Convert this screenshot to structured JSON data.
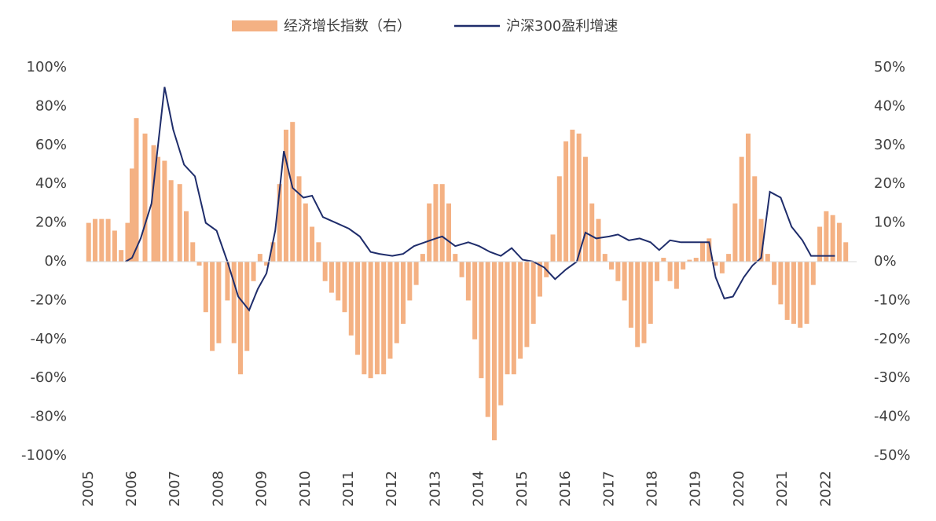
{
  "chart_data": {
    "type": "combo",
    "xlim": [
      2004.95,
      2022.7
    ],
    "xticks": [
      2005,
      2006,
      2007,
      2008,
      2009,
      2010,
      2011,
      2012,
      2013,
      2014,
      2015,
      2016,
      2017,
      2018,
      2019,
      2020,
      2021,
      2022
    ],
    "ylim": [
      -100,
      100
    ],
    "yticks": [
      {
        "value": -100,
        "label": "-100%"
      },
      {
        "value": -80,
        "label": "-80%"
      },
      {
        "value": -60,
        "label": "-60%"
      },
      {
        "value": -40,
        "label": "-40%"
      },
      {
        "value": -20,
        "label": "-20%"
      },
      {
        "value": 0,
        "label": "0%"
      },
      {
        "value": 20,
        "label": "20%"
      },
      {
        "value": 40,
        "label": "40%"
      },
      {
        "value": 60,
        "label": "60%"
      },
      {
        "value": 80,
        "label": "80%"
      },
      {
        "value": 100,
        "label": "100%"
      }
    ],
    "y2lim": [
      -50,
      50
    ],
    "y2ticks": [
      {
        "value": -50,
        "label": "-50%"
      },
      {
        "value": -40,
        "label": "-40%"
      },
      {
        "value": -30,
        "label": "-30%"
      },
      {
        "value": -20,
        "label": "-20%"
      },
      {
        "value": -10,
        "label": "-10%"
      },
      {
        "value": 0,
        "label": "0%"
      },
      {
        "value": 10,
        "label": "10%"
      },
      {
        "value": 20,
        "label": "20%"
      },
      {
        "value": 30,
        "label": "30%"
      },
      {
        "value": 40,
        "label": "40%"
      },
      {
        "value": 50,
        "label": "50%"
      }
    ],
    "legend": "top",
    "series": [
      {
        "name": "经济增长指数（右）",
        "type": "bar",
        "axis": "y2",
        "color": "#f4b183",
        "x": [
          2005.0,
          2005.15,
          2005.3,
          2005.45,
          2005.6,
          2005.75,
          2005.9,
          2006.0,
          2006.1,
          2006.3,
          2006.5,
          2006.6,
          2006.75,
          2006.9,
          2007.1,
          2007.25,
          2007.4,
          2007.55,
          2007.7,
          2007.85,
          2008.0,
          2008.2,
          2008.35,
          2008.5,
          2008.65,
          2008.8,
          2008.95,
          2009.1,
          2009.25,
          2009.4,
          2009.55,
          2009.7,
          2009.85,
          2010.0,
          2010.15,
          2010.3,
          2010.45,
          2010.6,
          2010.75,
          2010.9,
          2011.05,
          2011.2,
          2011.35,
          2011.5,
          2011.65,
          2011.8,
          2011.95,
          2012.1,
          2012.25,
          2012.4,
          2012.55,
          2012.7,
          2012.85,
          2013.0,
          2013.15,
          2013.3,
          2013.45,
          2013.6,
          2013.75,
          2013.9,
          2014.05,
          2014.2,
          2014.35,
          2014.5,
          2014.65,
          2014.8,
          2014.95,
          2015.1,
          2015.25,
          2015.4,
          2015.55,
          2015.7,
          2015.85,
          2016.0,
          2016.15,
          2016.3,
          2016.45,
          2016.6,
          2016.75,
          2016.9,
          2017.05,
          2017.2,
          2017.35,
          2017.5,
          2017.65,
          2017.8,
          2017.95,
          2018.1,
          2018.25,
          2018.4,
          2018.55,
          2018.7,
          2018.85,
          2019.0,
          2019.15,
          2019.3,
          2019.45,
          2019.6,
          2019.75,
          2019.9,
          2020.05,
          2020.2,
          2020.35,
          2020.5,
          2020.65,
          2020.8,
          2020.95,
          2021.1,
          2021.25,
          2021.4,
          2021.55,
          2021.7,
          2021.85,
          2022.0,
          2022.15,
          2022.3,
          2022.45
        ],
        "values": [
          10,
          11,
          11,
          11,
          8,
          3,
          10,
          24,
          37,
          33,
          30,
          27,
          26,
          21,
          20,
          13,
          5,
          -1,
          -13,
          -23,
          -21,
          -10,
          -21,
          -29,
          -23,
          -5,
          2,
          -1,
          5,
          20,
          34,
          36,
          22,
          15,
          9,
          5,
          -5,
          -8,
          -10,
          -13,
          -19,
          -24,
          -29,
          -30,
          -29,
          -29,
          -25,
          -21,
          -16,
          -10,
          -6,
          2,
          15,
          20,
          20,
          15,
          2,
          -4,
          -10,
          -20,
          -30,
          -40,
          -46,
          -37,
          -29,
          -29,
          -25,
          -22,
          -16,
          -9,
          -4,
          7,
          22,
          31,
          34,
          33,
          27,
          15,
          11,
          2,
          -2,
          -5,
          -10,
          -17,
          -22,
          -21,
          -16,
          -5,
          1,
          -5,
          -7,
          -2,
          0.5,
          1,
          5,
          6,
          -1,
          -3,
          2,
          15,
          27,
          33,
          22,
          11,
          2,
          -6,
          -11,
          -15,
          -16,
          -17,
          -16,
          -6,
          9,
          13,
          12,
          10,
          5
        ]
      },
      {
        "name": "沪深300盈利增速",
        "type": "line",
        "color": "#1f2d6b",
        "x": [
          2005.85,
          2006.0,
          2006.2,
          2006.45,
          2006.55,
          2006.75,
          2006.95,
          2007.2,
          2007.45,
          2007.7,
          2007.95,
          2008.2,
          2008.45,
          2008.7,
          2008.9,
          2009.1,
          2009.3,
          2009.5,
          2009.7,
          2009.95,
          2010.15,
          2010.4,
          2010.7,
          2011.0,
          2011.25,
          2011.5,
          2011.7,
          2012.0,
          2012.25,
          2012.5,
          2012.75,
          2013.0,
          2013.15,
          2013.45,
          2013.75,
          2014.0,
          2014.25,
          2014.5,
          2014.75,
          2015.0,
          2015.25,
          2015.5,
          2015.75,
          2016.0,
          2016.25,
          2016.45,
          2016.7,
          2017.0,
          2017.2,
          2017.45,
          2017.7,
          2017.95,
          2018.15,
          2018.4,
          2018.65,
          2019.0,
          2019.3,
          2019.45,
          2019.65,
          2019.85,
          2020.1,
          2020.3,
          2020.5,
          2020.7,
          2020.95,
          2021.2,
          2021.45,
          2021.65,
          2021.8,
          2022.2
        ],
        "values": [
          0,
          2,
          12,
          30,
          50,
          90,
          68,
          50,
          44,
          20,
          16,
          0,
          -18,
          -25,
          -14,
          -6,
          16,
          57,
          38,
          33,
          34,
          23,
          20,
          17,
          13,
          5,
          4,
          3,
          4,
          8,
          10,
          12,
          13,
          8,
          10,
          8,
          5,
          3,
          7,
          1,
          0,
          -3,
          -9,
          -4,
          0,
          15,
          12,
          13,
          14,
          11,
          12,
          10,
          6,
          11,
          10,
          10,
          10,
          -8,
          -19,
          -18,
          -8,
          -2,
          2,
          36,
          33,
          18,
          11,
          3,
          3,
          3
        ]
      }
    ]
  }
}
